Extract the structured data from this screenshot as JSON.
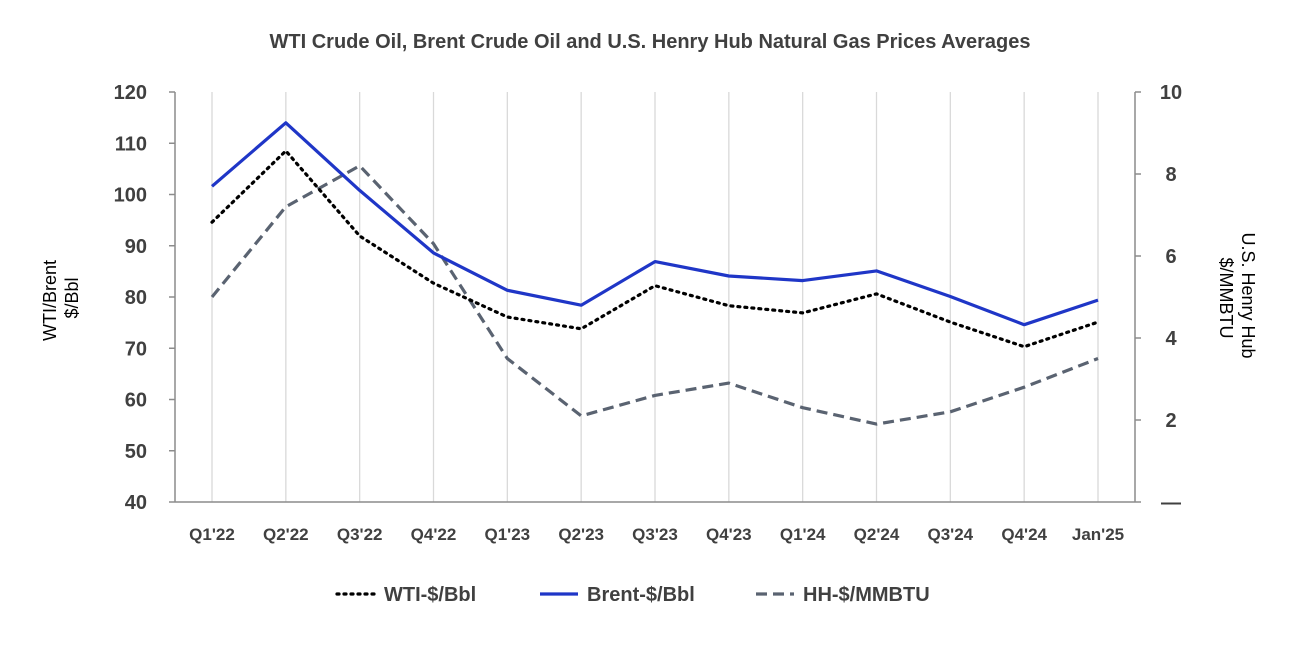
{
  "chart_data": {
    "type": "line",
    "title": "WTI Crude Oil, Brent Crude Oil and U.S. Henry Hub Natural Gas Prices Averages",
    "categories": [
      "Q1'22",
      "Q2'22",
      "Q3'22",
      "Q4'22",
      "Q1'23",
      "Q2'23",
      "Q3'23",
      "Q4'23",
      "Q1'24",
      "Q2'24",
      "Q3'24",
      "Q4'24",
      "Jan'25"
    ],
    "y_left": {
      "label_lines": [
        "WTI/Brent",
        "$/Bbl"
      ],
      "ylim": [
        40,
        120
      ],
      "ticks": [
        "40",
        "50",
        "60",
        "70",
        "80",
        "90",
        "100",
        "110",
        "120"
      ]
    },
    "y_right": {
      "label_lines": [
        "U.S. Henry Hub",
        "$/MMBTU"
      ],
      "ylim": [
        0,
        10
      ],
      "ticks": [
        "—",
        "2",
        "4",
        "6",
        "8",
        "10"
      ]
    },
    "grid": "vertical",
    "legend_position": "bottom",
    "series": [
      {
        "name": "WTI-$/Bbl",
        "axis": "left",
        "style": "dotted",
        "color": "#000000",
        "values": [
          94.6,
          108.5,
          91.9,
          82.7,
          76.1,
          73.8,
          82.2,
          78.3,
          76.9,
          80.6,
          75.1,
          70.3,
          75.1
        ]
      },
      {
        "name": "Brent-$/Bbl",
        "axis": "left",
        "style": "solid",
        "color": "#1F36C7",
        "values": [
          101.6,
          114.0,
          100.8,
          88.6,
          81.3,
          78.4,
          86.9,
          84.1,
          83.2,
          85.1,
          80.1,
          74.6,
          79.4
        ]
      },
      {
        "name": "HH-$/MMBTU",
        "axis": "right",
        "style": "dashed",
        "color": "#5A6371",
        "values": [
          5.0,
          7.2,
          8.2,
          6.3,
          3.5,
          2.1,
          2.6,
          2.9,
          2.3,
          1.9,
          2.2,
          2.8,
          3.5
        ]
      }
    ]
  }
}
